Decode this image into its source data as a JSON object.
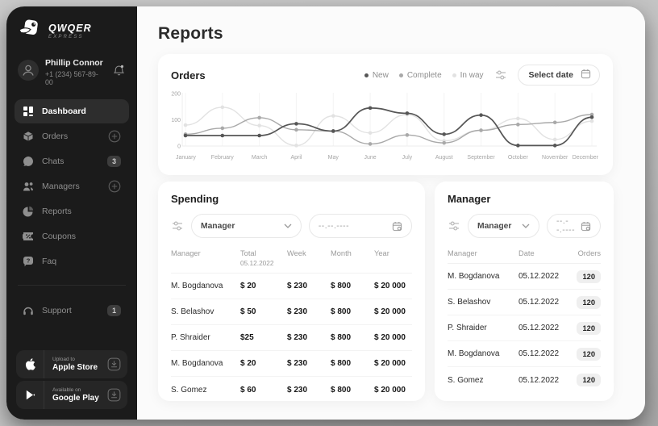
{
  "sidebar": {
    "logo": {
      "brand": "QWQER",
      "sub": "EXPRESS"
    },
    "user": {
      "name": "Phillip Connor",
      "phone": "+1 (234) 567-89-00"
    },
    "menu": [
      {
        "label": "Dashboard",
        "icon": "dashboard-icon",
        "active": true
      },
      {
        "label": "Orders",
        "icon": "orders-icon",
        "trailing": "plus"
      },
      {
        "label": "Chats",
        "icon": "chats-icon",
        "badge": "3"
      },
      {
        "label": "Managers",
        "icon": "managers-icon",
        "trailing": "plus"
      },
      {
        "label": "Reports",
        "icon": "reports-icon"
      },
      {
        "label": "Coupons",
        "icon": "coupons-icon"
      },
      {
        "label": "Faq",
        "icon": "faq-icon"
      }
    ],
    "support": {
      "label": "Support",
      "badge": "1"
    },
    "store_buttons": [
      {
        "top": "Upload to",
        "bottom": "Apple Store",
        "icon": "apple-icon"
      },
      {
        "top": "Available on",
        "bottom": "Google Play",
        "icon": "google-play-icon"
      }
    ]
  },
  "main": {
    "title": "Reports",
    "orders": {
      "title": "Orders",
      "select_date_label": "Select date"
    },
    "spending": {
      "title": "Spending",
      "manager_filter": "Manager",
      "date_placeholder": "--.--.----",
      "columns": [
        "Manager",
        "Total",
        "Week",
        "Month",
        "Year"
      ],
      "total_subheader": "05.12.2022",
      "rows": [
        [
          "M. Bogdanova",
          "$ 20",
          "$ 230",
          "$ 800",
          "$ 20 000"
        ],
        [
          "S. Belashov",
          "$ 50",
          "$ 230",
          "$ 800",
          "$ 20 000"
        ],
        [
          "P. Shraider",
          "$25",
          "$ 230",
          "$ 800",
          "$ 20 000"
        ],
        [
          "M. Bogdanova",
          "$ 20",
          "$ 230",
          "$ 800",
          "$ 20 000"
        ],
        [
          "S. Gomez",
          "$ 60",
          "$ 230",
          "$ 800",
          "$ 20 000"
        ]
      ]
    },
    "manager": {
      "title": "Manager",
      "manager_filter": "Manager",
      "date_placeholder": "--.--.----",
      "columns": [
        "Manager",
        "Date",
        "Orders"
      ],
      "rows": [
        [
          "M. Bogdanova",
          "05.12.2022",
          "120"
        ],
        [
          "S. Belashov",
          "05.12.2022",
          "120"
        ],
        [
          "P. Shraider",
          "05.12.2022",
          "120"
        ],
        [
          "M. Bogdanova",
          "05.12.2022",
          "120"
        ],
        [
          "S. Gomez",
          "05.12.2022",
          "120"
        ]
      ]
    }
  },
  "chart_data": {
    "type": "line",
    "title": "Orders",
    "x": [
      "January",
      "February",
      "March",
      "April",
      "May",
      "June",
      "July",
      "August",
      "September",
      "October",
      "November",
      "December"
    ],
    "ylim": [
      0,
      200
    ],
    "yticks": [
      0,
      100,
      200
    ],
    "grid": "vertical",
    "legend_position": "top-right",
    "series": [
      {
        "name": "New",
        "color": "#565656",
        "values": [
          40,
          40,
          40,
          85,
          57,
          145,
          125,
          45,
          118,
          2,
          2,
          110
        ]
      },
      {
        "name": "Complete",
        "color": "#a9a9a9",
        "values": [
          45,
          68,
          108,
          62,
          57,
          8,
          42,
          12,
          60,
          82,
          90,
          120
        ]
      },
      {
        "name": "In way",
        "color": "#e2e2e2",
        "values": [
          80,
          148,
          78,
          2,
          115,
          50,
          120,
          20,
          60,
          105,
          25,
          95
        ]
      }
    ]
  }
}
